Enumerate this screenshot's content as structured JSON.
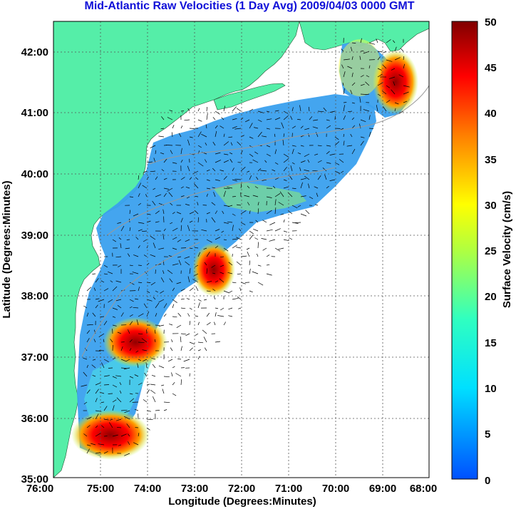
{
  "title": "Mid-Atlantic Raw Velocities (1 Day Avg) 2009/04/03 0000 GMT",
  "x_axis": {
    "label": "Longitude (Degrees:Minutes)",
    "ticks": [
      "76:00",
      "75:00",
      "74:00",
      "73:00",
      "72:00",
      "71:00",
      "70:00",
      "69:00",
      "68:00"
    ]
  },
  "y_axis": {
    "label": "Latitude (Degrees:Minutes)",
    "ticks": [
      "42:00",
      "41:00",
      "40:00",
      "39:00",
      "38:00",
      "37:00",
      "36:00",
      "35:00"
    ]
  },
  "colorbar": {
    "label": "Surface Velocity (cm/s)",
    "ticks": [
      "50",
      "45",
      "40",
      "35",
      "30",
      "25",
      "20",
      "15",
      "10",
      "5",
      "0"
    ],
    "min": 0,
    "max": 50
  },
  "colors": {
    "land": "#55eea8",
    "title": "#1010d8",
    "grid": "#555555"
  },
  "chart_data": {
    "type": "heatmap",
    "title": "Mid-Atlantic Raw Velocities (1 Day Avg) 2009/04/03 0000 GMT",
    "xlabel": "Longitude (Degrees:Minutes)",
    "ylabel": "Latitude (Degrees:Minutes)",
    "xlim": [
      -76,
      -68
    ],
    "ylim": [
      35,
      42.5
    ],
    "clim": [
      0,
      50
    ],
    "colorbar_label": "Surface Velocity (cm/s)",
    "grid": true,
    "hotspots": [
      {
        "lon": -72.6,
        "lat": 38.5,
        "speed": 50
      },
      {
        "lon": -74.2,
        "lat": 37.0,
        "speed": 48
      },
      {
        "lon": -74.8,
        "lat": 35.6,
        "speed": 50
      },
      {
        "lon": -68.7,
        "lat": 41.5,
        "speed": 45
      },
      {
        "lon": -69.8,
        "lat": 41.6,
        "speed": 30
      }
    ],
    "background_speed_range": [
      5,
      15
    ]
  }
}
